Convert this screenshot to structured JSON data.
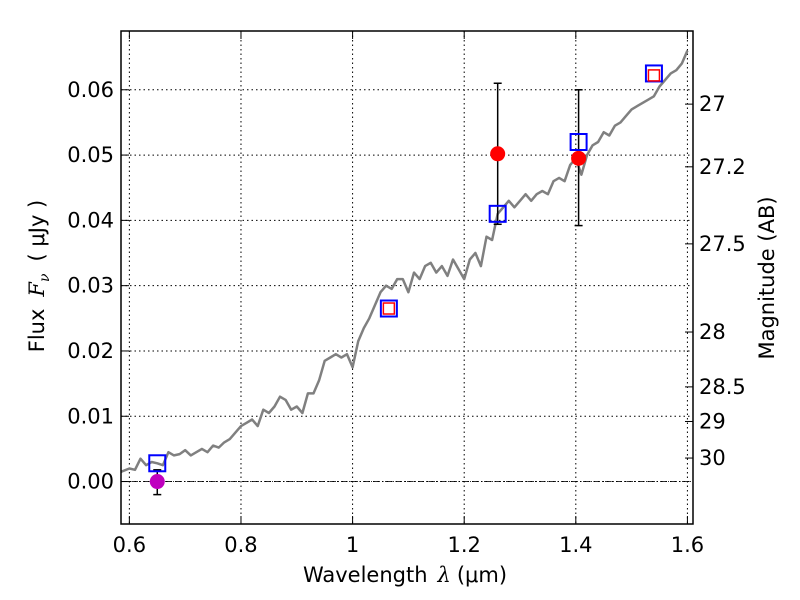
{
  "chart_data": {
    "type": "line",
    "xlabel": "Wavelength  λ (μm)",
    "ylabel": "Flux  F_ν  ( μJy )",
    "ylabel_parts": {
      "prefix": "Flux",
      "symbol": "F",
      "subscript": "ν",
      "unit": "( μJy )"
    },
    "xlabel_parts": {
      "prefix": "Wavelength",
      "symbol": "λ",
      "unit": "(μm)"
    },
    "y2label": "Magnitude (AB)",
    "xlim": [
      0.585,
      1.61
    ],
    "ylim": [
      -0.0065,
      0.069
    ],
    "grid": true,
    "x_ticks": [
      {
        "value": 0.6,
        "label": "0.6"
      },
      {
        "value": 0.8,
        "label": "0.8"
      },
      {
        "value": 1.0,
        "label": "1"
      },
      {
        "value": 1.2,
        "label": "1.2"
      },
      {
        "value": 1.4,
        "label": "1.4"
      },
      {
        "value": 1.6,
        "label": "1.6"
      }
    ],
    "y_ticks": [
      {
        "value": 0.0,
        "label": "0.00"
      },
      {
        "value": 0.01,
        "label": "0.01"
      },
      {
        "value": 0.02,
        "label": "0.02"
      },
      {
        "value": 0.03,
        "label": "0.03"
      },
      {
        "value": 0.04,
        "label": "0.04"
      },
      {
        "value": 0.05,
        "label": "0.05"
      },
      {
        "value": 0.06,
        "label": "0.06"
      }
    ],
    "y2_ticks": [
      {
        "label": "27",
        "flux": 0.0578
      },
      {
        "label": "27.2",
        "flux": 0.0482
      },
      {
        "label": "27.5",
        "flux": 0.0364
      },
      {
        "label": "28",
        "flux": 0.0229
      },
      {
        "label": "28.5",
        "flux": 0.0145
      },
      {
        "label": "29",
        "flux": 0.0092
      },
      {
        "label": "30",
        "flux": 0.0036
      }
    ],
    "zero_line": {
      "y": 0.0,
      "color": "#000000"
    },
    "series": [
      {
        "type": "line",
        "color": "#808080",
        "x": [
          0.585,
          0.6,
          0.61,
          0.62,
          0.63,
          0.64,
          0.65,
          0.66,
          0.67,
          0.68,
          0.69,
          0.7,
          0.71,
          0.72,
          0.73,
          0.74,
          0.75,
          0.76,
          0.77,
          0.78,
          0.79,
          0.8,
          0.81,
          0.82,
          0.83,
          0.84,
          0.85,
          0.86,
          0.87,
          0.88,
          0.89,
          0.9,
          0.91,
          0.92,
          0.93,
          0.94,
          0.95,
          0.96,
          0.97,
          0.98,
          0.99,
          1.0,
          1.01,
          1.02,
          1.03,
          1.04,
          1.05,
          1.06,
          1.07,
          1.08,
          1.09,
          1.1,
          1.11,
          1.12,
          1.13,
          1.14,
          1.15,
          1.16,
          1.17,
          1.18,
          1.19,
          1.2,
          1.21,
          1.22,
          1.23,
          1.24,
          1.25,
          1.26,
          1.27,
          1.28,
          1.29,
          1.3,
          1.31,
          1.32,
          1.33,
          1.34,
          1.35,
          1.36,
          1.37,
          1.38,
          1.39,
          1.4,
          1.41,
          1.42,
          1.43,
          1.44,
          1.45,
          1.46,
          1.47,
          1.48,
          1.49,
          1.5,
          1.51,
          1.52,
          1.53,
          1.54,
          1.55,
          1.56,
          1.57,
          1.58,
          1.59,
          1.6
        ],
        "y": [
          0.0015,
          0.002,
          0.0018,
          0.0035,
          0.0025,
          0.003,
          0.0028,
          0.0025,
          0.0045,
          0.004,
          0.0042,
          0.0048,
          0.004,
          0.0045,
          0.005,
          0.0045,
          0.0055,
          0.0052,
          0.006,
          0.0065,
          0.0075,
          0.0085,
          0.009,
          0.0095,
          0.0085,
          0.011,
          0.0105,
          0.0115,
          0.013,
          0.0125,
          0.011,
          0.0115,
          0.0105,
          0.0135,
          0.0135,
          0.0155,
          0.0185,
          0.019,
          0.0195,
          0.019,
          0.0195,
          0.0175,
          0.0215,
          0.0235,
          0.025,
          0.027,
          0.029,
          0.03,
          0.0295,
          0.031,
          0.031,
          0.029,
          0.032,
          0.031,
          0.033,
          0.0335,
          0.032,
          0.033,
          0.0315,
          0.034,
          0.0325,
          0.031,
          0.034,
          0.035,
          0.033,
          0.0375,
          0.037,
          0.041,
          0.042,
          0.043,
          0.042,
          0.043,
          0.044,
          0.043,
          0.044,
          0.0445,
          0.044,
          0.046,
          0.0465,
          0.046,
          0.0485,
          0.0495,
          0.047,
          0.05,
          0.0515,
          0.052,
          0.0535,
          0.053,
          0.0545,
          0.055,
          0.056,
          0.057,
          0.0575,
          0.058,
          0.0585,
          0.059,
          0.0605,
          0.0615,
          0.0625,
          0.063,
          0.064,
          0.066
        ]
      },
      {
        "type": "points",
        "marker": "circle",
        "color": "#ff0000",
        "points": [
          {
            "x": 1.26,
            "y": 0.0502,
            "err_low": 0.0108,
            "err_high": 0.0108
          },
          {
            "x": 1.405,
            "y": 0.0495,
            "err_low": 0.0103,
            "err_high": 0.0105
          }
        ]
      },
      {
        "type": "points",
        "marker": "circle",
        "color": "#bf00bf",
        "points": [
          {
            "x": 0.65,
            "y": 0.0,
            "err_low": 0.002,
            "err_high": 0.0018
          }
        ]
      },
      {
        "type": "points",
        "marker": "square-open",
        "color": "#0000ff",
        "points": [
          {
            "x": 0.65,
            "y": 0.0028
          },
          {
            "x": 1.065,
            "y": 0.0265
          },
          {
            "x": 1.26,
            "y": 0.041
          },
          {
            "x": 1.405,
            "y": 0.052
          },
          {
            "x": 1.54,
            "y": 0.0625
          }
        ]
      },
      {
        "type": "points",
        "marker": "square-small-open",
        "color": "#ff0000",
        "points": [
          {
            "x": 1.065,
            "y": 0.0265
          },
          {
            "x": 1.54,
            "y": 0.0622
          }
        ]
      }
    ]
  }
}
